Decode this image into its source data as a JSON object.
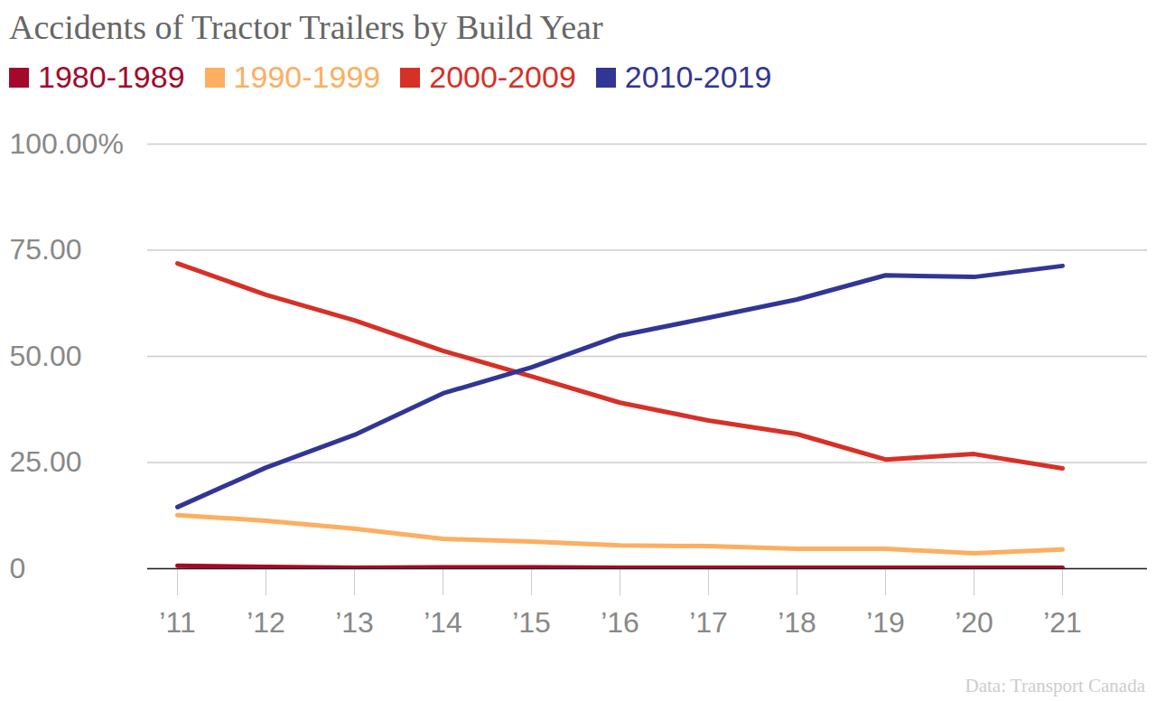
{
  "chart_data": {
    "type": "line",
    "title": "Accidents of Tractor Trailers by Build Year",
    "caption": "Data: Transport Canada",
    "categories": [
      "’11",
      "’12",
      "’13",
      "’14",
      "’15",
      "’16",
      "’17",
      "’18",
      "’19",
      "’20",
      "’21"
    ],
    "series": [
      {
        "name": "1980-1989",
        "color": "#a3092a",
        "values": [
          0.7,
          0.4,
          0.2,
          0.3,
          0.3,
          0.2,
          0.2,
          0.2,
          0.2,
          0.2,
          0.2
        ]
      },
      {
        "name": "1990-1999",
        "color": "#fdae61",
        "values": [
          12.6,
          11.3,
          9.4,
          7.0,
          6.4,
          5.5,
          5.3,
          4.7,
          4.7,
          3.6,
          4.5
        ]
      },
      {
        "name": "2000-2009",
        "color": "#d73027",
        "values": [
          71.9,
          64.5,
          58.5,
          51.3,
          45.3,
          39.1,
          34.9,
          31.7,
          25.7,
          27.0,
          23.6
        ]
      },
      {
        "name": "2010-2019",
        "color": "#313695",
        "values": [
          14.5,
          23.8,
          31.5,
          41.3,
          47.4,
          54.9,
          59.1,
          63.4,
          69.1,
          68.7,
          71.3
        ]
      }
    ],
    "ylim": [
      0,
      100
    ],
    "yticks": [
      0,
      {
        "value": 25,
        "label": "25.00"
      },
      {
        "value": 50,
        "label": "50.00"
      },
      {
        "value": 75,
        "label": "75.00"
      },
      {
        "value": 100,
        "label": "100.00%"
      }
    ],
    "grid": true,
    "legend": "top-left"
  }
}
